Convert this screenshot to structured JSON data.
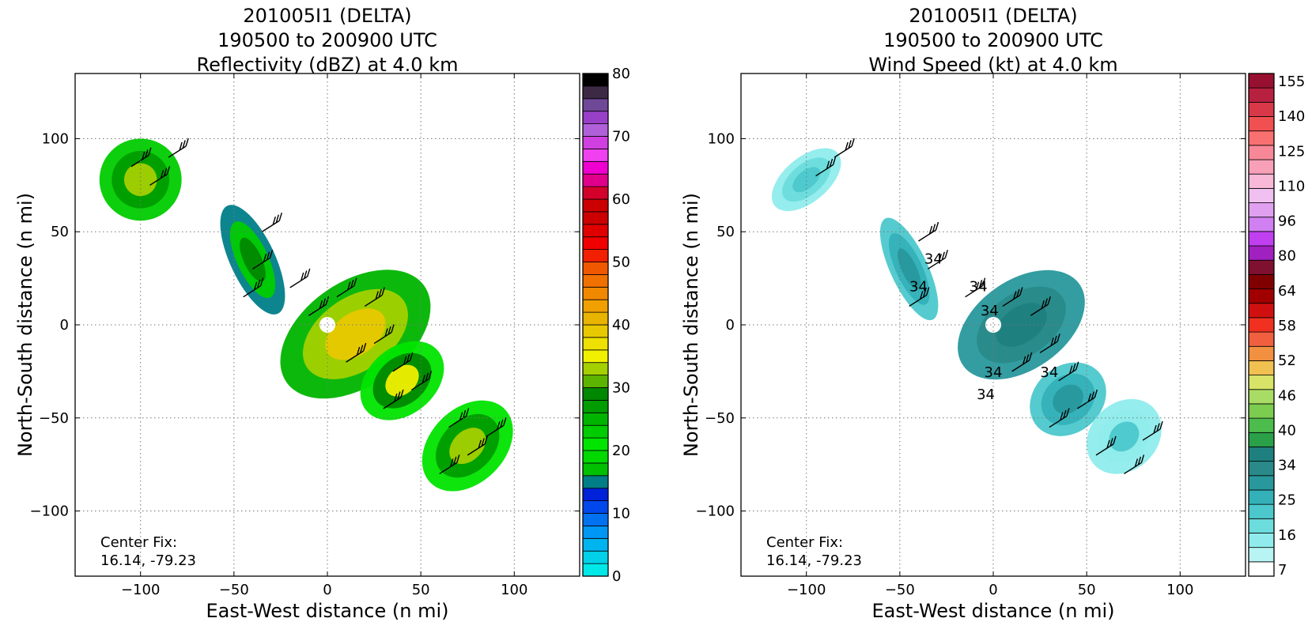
{
  "chart_data": [
    {
      "type": "heatmap",
      "title_lines": [
        "201005I1 (DELTA)",
        "190500 to 200900 UTC",
        "Reflectivity (dBZ) at 4.0 km"
      ],
      "xlabel": "East-West distance (n mi)",
      "ylabel": "North-South distance (n mi)",
      "xlim": [
        -135,
        135
      ],
      "ylim": [
        -135,
        135
      ],
      "xticks": [
        -100,
        -50,
        0,
        50,
        100
      ],
      "yticks": [
        -100,
        -50,
        0,
        50,
        100
      ],
      "xtick_labels": [
        "−100",
        "−50",
        "0",
        "50",
        "100"
      ],
      "ytick_labels": [
        "−100",
        "−50",
        "0",
        "50",
        "100"
      ],
      "grid": true,
      "annotation_lines": [
        "Center Fix:",
        "16.14, -79.23"
      ],
      "colorbar": {
        "min": 0,
        "max": 80,
        "levels": [
          0,
          5,
          10,
          15,
          20,
          25,
          30,
          35,
          40,
          45,
          50,
          55,
          60,
          65,
          70,
          75,
          80
        ],
        "tick_labels": [
          "0",
          "10",
          "20",
          "30",
          "40",
          "50",
          "60",
          "70",
          "80"
        ],
        "colors": [
          "#00e8e8",
          "#00d0e8",
          "#00b4f0",
          "#0096f4",
          "#0072f0",
          "#0048ec",
          "#0022d8",
          "#007e88",
          "#00c000",
          "#00d800",
          "#00e400",
          "#00cc00",
          "#00b400",
          "#009c00",
          "#008800",
          "#5cb400",
          "#a4d000",
          "#f0f000",
          "#eee000",
          "#e8c800",
          "#e8b400",
          "#f0a000",
          "#f08800",
          "#f07000",
          "#f05800",
          "#f02000",
          "#f00000",
          "#e00000",
          "#cc0000",
          "#cc0000",
          "#d4002c",
          "#e0008c",
          "#f000d0",
          "#f040f0",
          "#d040e0",
          "#b060d8",
          "#9840c8",
          "#704898",
          "#3c2a44",
          "#000000"
        ]
      },
      "fields": [
        {
          "cx": -100,
          "cy": 78,
          "rx": 22,
          "ry": 22,
          "angle": -40,
          "values": [
            22,
            26,
            33
          ]
        },
        {
          "cx": -40,
          "cy": 35,
          "rx": 12,
          "ry": 32,
          "angle": -25,
          "values": [
            14,
            22,
            28
          ]
        },
        {
          "cx": 15,
          "cy": -5,
          "rx": 45,
          "ry": 28,
          "angle": -35,
          "values": [
            24,
            32,
            38
          ]
        },
        {
          "cx": 40,
          "cy": -30,
          "rx": 25,
          "ry": 18,
          "angle": -40,
          "values": [
            20,
            28,
            34
          ]
        },
        {
          "cx": 75,
          "cy": -65,
          "rx": 28,
          "ry": 20,
          "angle": -45,
          "values": [
            20,
            26,
            33
          ]
        }
      ],
      "barbs": [
        {
          "x": -105,
          "y": 85
        },
        {
          "x": -95,
          "y": 75
        },
        {
          "x": -85,
          "y": 90
        },
        {
          "x": -35,
          "y": 50
        },
        {
          "x": -40,
          "y": 30
        },
        {
          "x": -45,
          "y": 15
        },
        {
          "x": -20,
          "y": 20
        },
        {
          "x": -10,
          "y": 5
        },
        {
          "x": 5,
          "y": 15
        },
        {
          "x": 20,
          "y": 10
        },
        {
          "x": 25,
          "y": -10
        },
        {
          "x": 10,
          "y": -20
        },
        {
          "x": 35,
          "y": -25
        },
        {
          "x": 45,
          "y": -35
        },
        {
          "x": 30,
          "y": -45
        },
        {
          "x": 65,
          "y": -55
        },
        {
          "x": 75,
          "y": -70
        },
        {
          "x": 60,
          "y": -80
        },
        {
          "x": 85,
          "y": -60
        }
      ]
    },
    {
      "type": "heatmap",
      "title_lines": [
        "201005I1 (DELTA)",
        "190500 to 200900 UTC",
        "Wind Speed (kt) at 4.0 km"
      ],
      "xlabel": "East-West distance (n mi)",
      "ylabel": "North-South distance (n mi)",
      "xlim": [
        -135,
        135
      ],
      "ylim": [
        -135,
        135
      ],
      "xticks": [
        -100,
        -50,
        0,
        50,
        100
      ],
      "yticks": [
        -100,
        -50,
        0,
        50,
        100
      ],
      "xtick_labels": [
        "−100",
        "−50",
        "0",
        "50",
        "100"
      ],
      "ytick_labels": [
        "−100",
        "−50",
        "0",
        "50",
        "100"
      ],
      "grid": true,
      "annotation_lines": [
        "Center Fix:",
        "16.14, -79.23"
      ],
      "contour_label": "34",
      "colorbar": {
        "min": 7,
        "max": 160,
        "tick_labels": [
          "7",
          "16",
          "25",
          "34",
          "40",
          "46",
          "52",
          "58",
          "64",
          "80",
          "96",
          "110",
          "125",
          "140",
          "155"
        ],
        "colors": [
          "#ffffff",
          "#b8f4f4",
          "#90ecec",
          "#6cdcdc",
          "#4cc8cc",
          "#34b0b8",
          "#28989c",
          "#2a8a8a",
          "#1f7f7f",
          "#2aa048",
          "#4cbc4c",
          "#7ccc50",
          "#a8dc64",
          "#d8e468",
          "#f0c050",
          "#f09040",
          "#f06040",
          "#f03020",
          "#d01010",
          "#a00000",
          "#800000",
          "#801030",
          "#a020c0",
          "#c040f0",
          "#d080f0",
          "#e0a0f0",
          "#f0c0f0",
          "#f8b8d8",
          "#f8a0b8",
          "#f88898",
          "#f87070",
          "#f05050",
          "#d83848",
          "#b82040",
          "#981030"
        ]
      },
      "fields": [
        {
          "cx": -100,
          "cy": 78,
          "rx": 22,
          "ry": 12,
          "angle": -40,
          "values": [
            16,
            22,
            28
          ]
        },
        {
          "cx": -45,
          "cy": 30,
          "rx": 10,
          "ry": 30,
          "angle": -25,
          "values": [
            25,
            30,
            34
          ]
        },
        {
          "cx": 15,
          "cy": 0,
          "rx": 38,
          "ry": 24,
          "angle": -35,
          "values": [
            34,
            40,
            46
          ]
        },
        {
          "cx": 40,
          "cy": -40,
          "rx": 22,
          "ry": 18,
          "angle": -40,
          "values": [
            25,
            30,
            36
          ]
        },
        {
          "cx": 70,
          "cy": -60,
          "rx": 22,
          "ry": 18,
          "angle": -45,
          "values": [
            16,
            20,
            25
          ]
        }
      ],
      "barbs": [
        {
          "x": -95,
          "y": 80
        },
        {
          "x": -85,
          "y": 90
        },
        {
          "x": -40,
          "y": 45
        },
        {
          "x": -35,
          "y": 30
        },
        {
          "x": -45,
          "y": 10
        },
        {
          "x": -15,
          "y": 15
        },
        {
          "x": 5,
          "y": 10
        },
        {
          "x": 20,
          "y": 5
        },
        {
          "x": 25,
          "y": -15
        },
        {
          "x": 10,
          "y": -25
        },
        {
          "x": 35,
          "y": -30
        },
        {
          "x": 45,
          "y": -45
        },
        {
          "x": 30,
          "y": -55
        },
        {
          "x": 55,
          "y": -70
        },
        {
          "x": 70,
          "y": -80
        },
        {
          "x": 80,
          "y": -62
        }
      ]
    }
  ]
}
